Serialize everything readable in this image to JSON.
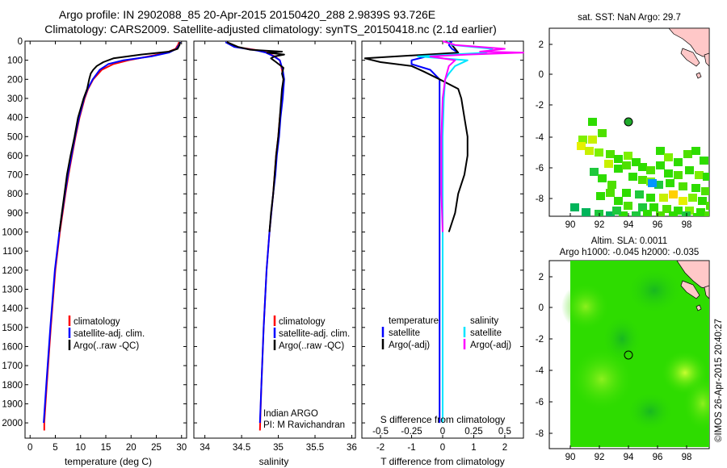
{
  "header": {
    "line1": "Argo profile: IN 2902088_85 20-Apr-2015 20150420_288 2.9839S 93.726E",
    "line2": "Climatology: CARS2009. Satellite-adjusted climatology: synTS_20150418.nc (2.1d earlier)"
  },
  "colors": {
    "climatology": "#ff0000",
    "satellite": "#0000ff",
    "argo": "#000000",
    "sat_salinity": "#00e5ff",
    "argo_salinity_adj": "#ff00ff",
    "land": "#ffc8c8"
  },
  "chart_data": [
    {
      "id": "temperature",
      "type": "line",
      "xlabel": "temperature (deg C)",
      "ylabel": "",
      "xlim": [
        -1,
        31
      ],
      "ylim": [
        2080,
        0
      ],
      "x_ticks": [
        0,
        5,
        10,
        15,
        20,
        25,
        30
      ],
      "x_tick_labels": [
        "0",
        "5",
        "10",
        "15",
        "20",
        "25",
        "30"
      ],
      "y_ticks": [
        0,
        100,
        200,
        300,
        400,
        500,
        600,
        700,
        800,
        900,
        1000,
        1100,
        1200,
        1300,
        1400,
        1500,
        1600,
        1700,
        1800,
        1900,
        2000
      ],
      "y_tick_labels": [
        "0",
        "100",
        "200",
        "300",
        "400",
        "500",
        "600",
        "700",
        "800",
        "900",
        "1000",
        "1100",
        "1200",
        "1300",
        "1400",
        "1500",
        "1600",
        "1700",
        "1800",
        "1900",
        "2000"
      ],
      "legend": [
        "climatology",
        "satellite-adj. clim.",
        "Argo(..raw -QC)"
      ],
      "series": [
        {
          "name": "climatology",
          "color": "#ff0000",
          "depth": [
            5,
            20,
            40,
            60,
            80,
            100,
            120,
            150,
            200,
            250,
            300,
            400,
            500,
            600,
            700,
            800,
            1000,
            1200,
            1500,
            1800,
            2000,
            2040
          ],
          "values": [
            29.5,
            29.3,
            28.8,
            27.0,
            23.5,
            19.5,
            16.5,
            14.2,
            12.5,
            11.5,
            10.8,
            9.8,
            9.0,
            8.3,
            7.6,
            7.0,
            5.9,
            5.0,
            4.1,
            3.3,
            2.8,
            2.8
          ]
        },
        {
          "name": "satellite-adj. clim.",
          "color": "#0000ff",
          "depth": [
            5,
            20,
            40,
            60,
            80,
            100,
            120,
            150,
            200,
            250,
            300,
            400,
            500,
            600,
            700,
            800,
            1000,
            1200,
            1500,
            1800,
            2000
          ],
          "values": [
            29.8,
            29.5,
            29.0,
            27.5,
            24.0,
            18.5,
            15.5,
            13.8,
            12.4,
            11.4,
            10.7,
            9.7,
            8.9,
            8.2,
            7.5,
            6.9,
            5.8,
            4.9,
            4.0,
            3.2,
            2.7
          ]
        },
        {
          "name": "Argo(..raw -QC)",
          "color": "#000000",
          "depth": [
            5,
            20,
            40,
            55,
            70,
            90,
            110,
            130,
            150,
            170,
            200,
            250,
            300,
            400,
            500,
            600,
            700,
            800,
            900,
            1000
          ],
          "values": [
            29.7,
            29.6,
            29.2,
            27.5,
            22.0,
            16.5,
            14.5,
            13.2,
            12.5,
            12.0,
            11.7,
            11.3,
            10.6,
            9.5,
            8.8,
            8.0,
            7.3,
            6.8,
            6.3,
            5.8
          ]
        }
      ]
    },
    {
      "id": "salinity",
      "type": "line",
      "xlabel": "salinity",
      "xlim": [
        33.85,
        36.05
      ],
      "ylim": [
        2080,
        0
      ],
      "x_ticks": [
        34,
        34.5,
        35,
        35.5,
        36
      ],
      "x_tick_labels": [
        "34",
        "34.5",
        "35",
        "35.5",
        "36"
      ],
      "legend": [
        "climatology",
        "satellite-adj. clim.",
        "Argo(..raw -QC)"
      ],
      "annotation": [
        "Indian ARGO",
        "PI: M Ravichandran"
      ],
      "series": [
        {
          "name": "climatology",
          "color": "#ff0000",
          "depth": [
            5,
            30,
            50,
            60,
            80,
            100,
            150,
            200,
            300,
            400,
            500,
            600,
            700,
            800,
            1000,
            1200,
            1500,
            1800,
            2040
          ],
          "values": [
            34.3,
            34.42,
            34.75,
            34.85,
            34.95,
            35.02,
            35.05,
            35.07,
            35.05,
            35.02,
            35.0,
            34.97,
            34.95,
            34.93,
            34.88,
            34.84,
            34.8,
            34.77,
            34.75
          ]
        },
        {
          "name": "satellite-adj. clim.",
          "color": "#0000ff",
          "depth": [
            5,
            30,
            50,
            60,
            80,
            100,
            150,
            200,
            300,
            400,
            500,
            600,
            700,
            800,
            1000,
            1200,
            1500,
            1800,
            2000
          ],
          "values": [
            34.28,
            34.4,
            34.72,
            34.83,
            34.94,
            35.02,
            35.06,
            35.08,
            35.06,
            35.03,
            35.01,
            34.98,
            34.96,
            34.93,
            34.88,
            34.84,
            34.8,
            34.77,
            34.75
          ]
        },
        {
          "name": "Argo(..raw -QC)",
          "color": "#000000",
          "depth": [
            5,
            30,
            45,
            55,
            60,
            70,
            80,
            90,
            110,
            140,
            170,
            200,
            250,
            300,
            400,
            500,
            600,
            700,
            800,
            900,
            1000
          ],
          "values": [
            34.3,
            34.45,
            34.62,
            35.05,
            34.85,
            35.08,
            34.95,
            34.9,
            34.97,
            35.07,
            35.05,
            35.07,
            35.05,
            35.04,
            35.02,
            35.0,
            34.97,
            34.95,
            34.93,
            34.9,
            34.88
          ]
        }
      ]
    },
    {
      "id": "difference",
      "type": "line",
      "xlabel": "T difference from climatology",
      "xlabel_top": "S difference from climatology",
      "xlim": [
        -2.6,
        2.6
      ],
      "ylim": [
        2080,
        0
      ],
      "x_ticks": [
        -2,
        -1,
        0,
        1,
        2
      ],
      "x_tick_labels": [
        "-2",
        "-1",
        "0",
        "1",
        "2"
      ],
      "top_ticks": [
        -0.5,
        -0.25,
        0,
        0.25,
        0.5
      ],
      "top_tick_labels": [
        "-0.5",
        "-0.25",
        "0",
        "0.25",
        "0.5"
      ],
      "legend_temperature_title": "temperature",
      "legend_salinity_title": "salinity",
      "legend_temperature": [
        "satellite",
        "Argo(-adj)"
      ],
      "legend_salinity": [
        "satellite",
        "Argo(-adj)"
      ],
      "series": [
        {
          "name": "T satellite",
          "color": "#0000ff",
          "depth": [
            0,
            20,
            40,
            60,
            80,
            100,
            120,
            150,
            200,
            300,
            500,
            800,
            1200,
            1600,
            2000
          ],
          "values": [
            0.3,
            0.2,
            0.3,
            0.5,
            -0.5,
            -1.0,
            -1.0,
            -0.4,
            -0.1,
            -0.1,
            -0.1,
            -0.1,
            -0.1,
            -0.1,
            -0.1
          ]
        },
        {
          "name": "T Argo(-adj)",
          "color": "#000000",
          "depth": [
            0,
            20,
            40,
            60,
            70,
            90,
            110,
            130,
            160,
            200,
            250,
            300,
            400,
            500,
            600,
            700,
            800,
            900,
            1000
          ],
          "values": [
            0.2,
            0.3,
            0.4,
            0.5,
            -0.5,
            -2.5,
            -2.0,
            -1.0,
            -0.6,
            -0.1,
            0.5,
            0.6,
            0.7,
            0.8,
            0.8,
            0.7,
            0.5,
            0.4,
            0.2
          ]
        },
        {
          "name": "S satellite",
          "color": "#00e5ff",
          "depth": [
            0,
            20,
            40,
            60,
            80,
            100,
            130,
            170,
            200,
            300,
            500,
            800,
            1000,
            1200,
            1600,
            2000
          ],
          "values": [
            0.04,
            0.08,
            0.4,
            0.35,
            -0.2,
            0.2,
            0.1,
            0.05,
            0.02,
            0.01,
            0.0,
            0.0,
            0.0,
            0.0,
            0.0,
            0.0
          ]
        },
        {
          "name": "S Argo(-adj)",
          "color": "#ff00ff",
          "depth": [
            0,
            20,
            40,
            55,
            60,
            70,
            80,
            100,
            130,
            200,
            300,
            500,
            800,
            1000
          ],
          "values": [
            0.0,
            0.1,
            0.5,
            0.3,
            0.65,
            0.2,
            -0.1,
            0.1,
            0.05,
            0.02,
            0.0,
            -0.01,
            -0.01,
            0.0
          ]
        }
      ]
    }
  ],
  "map_top": {
    "title": "sat. SST: NaN Argo: 29.7",
    "x_tick_labels": [
      "90",
      "92",
      "94",
      "96",
      "98"
    ],
    "y_tick_labels": [
      "2",
      "0",
      "-2",
      "-4",
      "-6",
      "-8"
    ]
  },
  "map_bottom": {
    "title_line1": "Altim. SLA: 0.0011",
    "title_line2": "Argo h1000: -0.045 h2000: -0.035",
    "x_tick_labels": [
      "90",
      "92",
      "94",
      "96",
      "98"
    ],
    "y_tick_labels": [
      "2",
      "0",
      "-2",
      "-4",
      "-6",
      "-8"
    ]
  },
  "credit": "©IMOS 26-Apr-2015 20:40:27"
}
